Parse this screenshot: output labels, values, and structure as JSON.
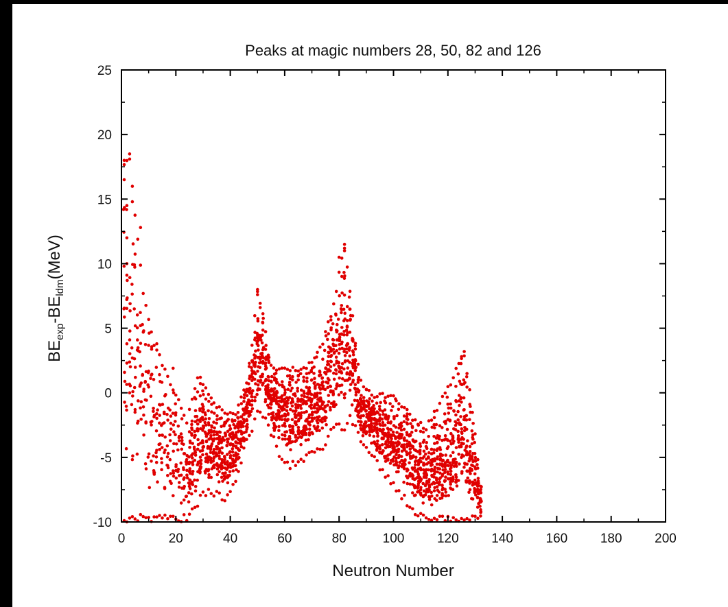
{
  "chart_data": {
    "type": "scatter",
    "title": "Peaks at magic numbers 28, 50, 82 and 126",
    "xlabel": "Neutron Number",
    "ylabel": {
      "main": "BE",
      "sub1": "exp",
      "mid": "-BE",
      "sub2": "ldm",
      "tail": "(MeV)"
    },
    "xlim": [
      0,
      200
    ],
    "ylim": [
      -10,
      25
    ],
    "xticks": [
      0,
      20,
      40,
      60,
      80,
      100,
      120,
      140,
      160,
      180,
      200
    ],
    "yticks": [
      -10,
      -5,
      0,
      5,
      10,
      15,
      20,
      25
    ],
    "grid": false,
    "marker_color": "#e00000",
    "series": [
      {
        "peaks_at_magic_numbers": [
          28,
          50,
          82,
          126
        ],
        "envelope": [
          [
            1,
            -10,
            18
          ],
          [
            3,
            -10,
            18.5
          ],
          [
            5,
            -10,
            14
          ],
          [
            8,
            -10,
            8
          ],
          [
            12,
            -10,
            4
          ],
          [
            16,
            -10,
            2
          ],
          [
            20,
            -10,
            0
          ],
          [
            24,
            -10,
            -2
          ],
          [
            28,
            -9,
            1.2
          ],
          [
            30,
            -8,
            1
          ],
          [
            34,
            -8,
            -0.5
          ],
          [
            38,
            -8.5,
            -1.5
          ],
          [
            42,
            -7,
            -1.5
          ],
          [
            46,
            -4,
            1
          ],
          [
            48,
            -3,
            4
          ],
          [
            50,
            -2,
            8
          ],
          [
            52,
            -2,
            6.5
          ],
          [
            54,
            -3,
            3
          ],
          [
            56,
            -4,
            2
          ],
          [
            58,
            -5,
            2
          ],
          [
            62,
            -6,
            2
          ],
          [
            66,
            -5.5,
            2
          ],
          [
            70,
            -5,
            2.5
          ],
          [
            74,
            -4.5,
            4
          ],
          [
            78,
            -3,
            7
          ],
          [
            80,
            -3,
            9.5
          ],
          [
            82,
            -3,
            11.5
          ],
          [
            84,
            -2,
            8
          ],
          [
            86,
            -3,
            4
          ],
          [
            88,
            -4,
            1
          ],
          [
            92,
            -5,
            0
          ],
          [
            96,
            -6.5,
            0
          ],
          [
            100,
            -7.5,
            -0.2
          ],
          [
            104,
            -8.5,
            -1
          ],
          [
            108,
            -9.5,
            -2
          ],
          [
            112,
            -10,
            -2.5
          ],
          [
            116,
            -10,
            -1
          ],
          [
            120,
            -10,
            0.5
          ],
          [
            124,
            -10,
            2.5
          ],
          [
            126,
            -10,
            3.2
          ],
          [
            128,
            -10,
            0.5
          ],
          [
            130,
            -10,
            -3
          ],
          [
            132,
            -10,
            -7
          ]
        ],
        "sample_points": [
          [
            1,
            18
          ],
          [
            1,
            16.5
          ],
          [
            2,
            14.5
          ],
          [
            2,
            12
          ],
          [
            3,
            18.5
          ],
          [
            2,
            10
          ],
          [
            4,
            14.8
          ],
          [
            7,
            12.8
          ],
          [
            7,
            5.2
          ],
          [
            13,
            3.8
          ],
          [
            4,
            2.7
          ],
          [
            2,
            3.8
          ],
          [
            2,
            2.3
          ],
          [
            3,
            0
          ],
          [
            5,
            -1.5
          ],
          [
            19,
            1.9
          ],
          [
            29,
            1.2
          ],
          [
            50,
            8
          ],
          [
            50,
            7.6
          ],
          [
            51,
            6.6
          ],
          [
            82,
            11.5
          ],
          [
            82,
            11
          ],
          [
            80,
            10.5
          ],
          [
            126,
            3.2
          ],
          [
            125,
            2.8
          ]
        ]
      }
    ]
  }
}
